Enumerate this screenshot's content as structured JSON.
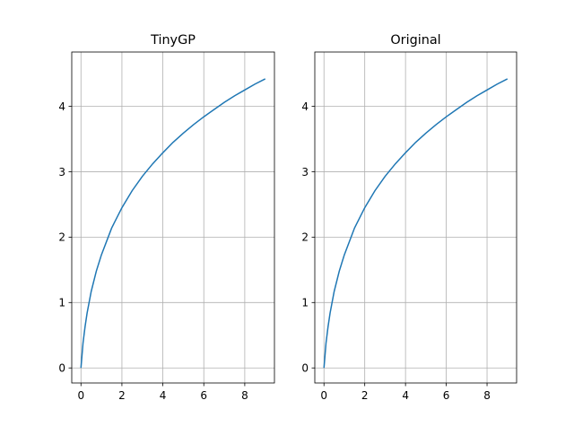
{
  "chart_data": [
    {
      "type": "line",
      "title": "TinyGP",
      "xlabel": "",
      "ylabel": "",
      "xlim": [
        -0.45,
        9.45
      ],
      "ylim": [
        -0.23,
        4.83
      ],
      "xticks": [
        0,
        2,
        4,
        6,
        8
      ],
      "yticks": [
        0,
        1,
        2,
        3,
        4
      ],
      "xtick_labels": [
        "0",
        "2",
        "4",
        "6",
        "8"
      ],
      "ytick_labels": [
        "0",
        "1",
        "2",
        "3",
        "4"
      ],
      "grid": true,
      "line_color": "#1f77b4",
      "series": [
        {
          "x": [
            0,
            0.1,
            0.2,
            0.3,
            0.5,
            0.75,
            1,
            1.5,
            2,
            2.5,
            3,
            3.5,
            4,
            4.5,
            5,
            5.5,
            6,
            6.5,
            7,
            7.5,
            8,
            8.5,
            9
          ],
          "y": [
            0,
            0.38,
            0.63,
            0.84,
            1.17,
            1.48,
            1.73,
            2.14,
            2.45,
            2.71,
            2.93,
            3.12,
            3.29,
            3.45,
            3.59,
            3.72,
            3.84,
            3.95,
            4.06,
            4.16,
            4.25,
            4.34,
            4.42
          ]
        }
      ]
    },
    {
      "type": "line",
      "title": "Original",
      "xlabel": "",
      "ylabel": "",
      "xlim": [
        -0.45,
        9.45
      ],
      "ylim": [
        -0.23,
        4.83
      ],
      "xticks": [
        0,
        2,
        4,
        6,
        8
      ],
      "yticks": [
        0,
        1,
        2,
        3,
        4
      ],
      "xtick_labels": [
        "0",
        "2",
        "4",
        "6",
        "8"
      ],
      "ytick_labels": [
        "0",
        "1",
        "2",
        "3",
        "4"
      ],
      "grid": true,
      "line_color": "#1f77b4",
      "series": [
        {
          "x": [
            0,
            0.1,
            0.2,
            0.3,
            0.5,
            0.75,
            1,
            1.5,
            2,
            2.5,
            3,
            3.5,
            4,
            4.5,
            5,
            5.5,
            6,
            6.5,
            7,
            7.5,
            8,
            8.5,
            9
          ],
          "y": [
            0,
            0.38,
            0.63,
            0.84,
            1.17,
            1.48,
            1.73,
            2.14,
            2.45,
            2.71,
            2.93,
            3.12,
            3.29,
            3.45,
            3.59,
            3.72,
            3.84,
            3.95,
            4.06,
            4.16,
            4.25,
            4.34,
            4.42
          ]
        }
      ]
    }
  ]
}
